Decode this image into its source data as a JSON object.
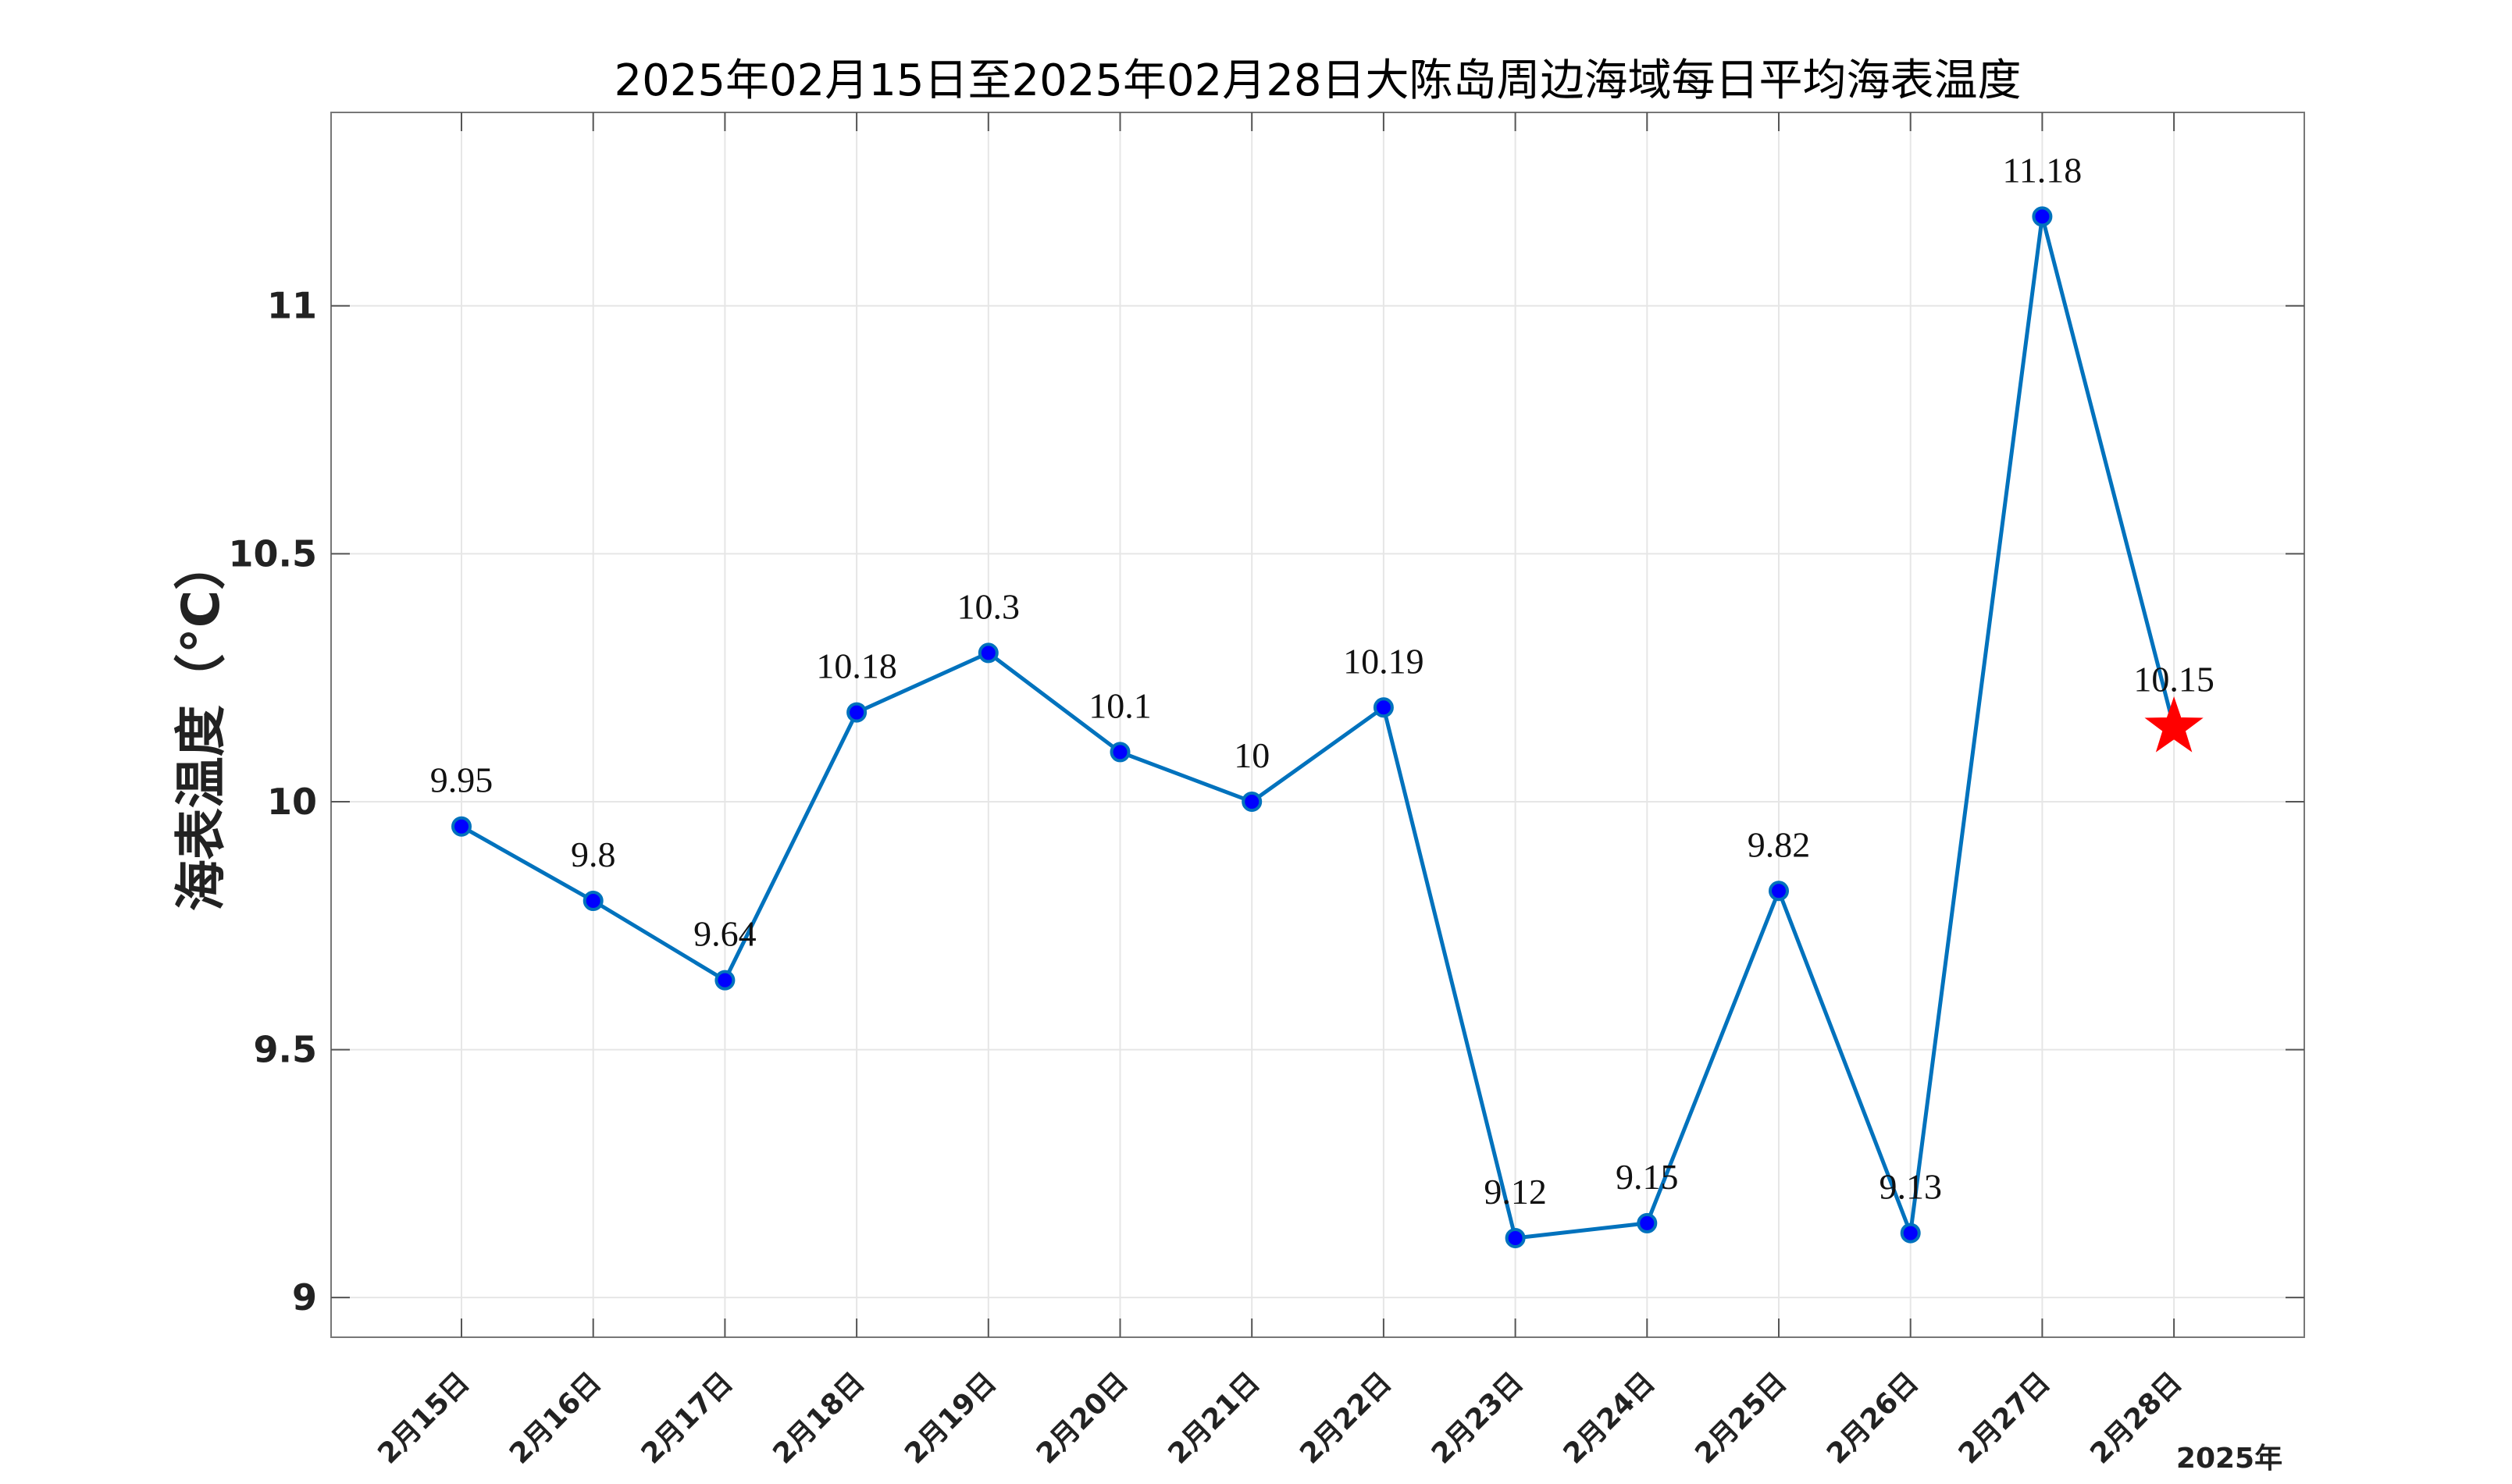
{
  "chart_data": {
    "type": "line",
    "title": "2025年02月15日至2025年02月28日大陈岛周边海域每日平均海表温度",
    "ylabel": "海表温度（°C）",
    "xlabel": "",
    "x_unit_label": "2025年",
    "ylim": [
      8.92,
      11.39
    ],
    "yticks": [
      9,
      9.5,
      10,
      10.5,
      11
    ],
    "ytick_labels": [
      "9",
      "9.5",
      "10",
      "10.5",
      "11"
    ],
    "grid": true,
    "categories": [
      "2月15日",
      "2月16日",
      "2月17日",
      "2月18日",
      "2月19日",
      "2月20日",
      "2月21日",
      "2月22日",
      "2月23日",
      "2月24日",
      "2月25日",
      "2月26日",
      "2月27日",
      "2月28日"
    ],
    "series": [
      {
        "values": [
          9.95,
          9.8,
          9.64,
          10.18,
          10.3,
          10.1,
          10,
          10.19,
          9.12,
          9.15,
          9.82,
          9.13,
          11.18,
          10.15
        ],
        "labels": [
          "9.95",
          "9.8",
          "9.64",
          "10.18",
          "10.3",
          "10.1",
          "10",
          "10.19",
          "9.12",
          "9.15",
          "9.82",
          "9.13",
          "11.18",
          "10.15"
        ],
        "line_color": "#0072BD",
        "marker_color": "#0000FF"
      }
    ],
    "forecast_marker": {
      "index": 13,
      "value": 10.15,
      "shape": "star",
      "color": "#FF0000"
    },
    "colors": {
      "grid": "#e6e6e6",
      "axes": "#000000",
      "tick_text": "#222222"
    }
  }
}
